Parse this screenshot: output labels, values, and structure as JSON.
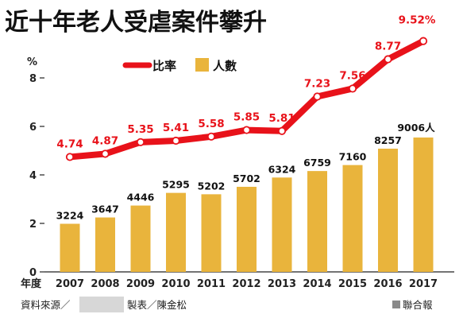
{
  "chart_data": {
    "type": "bar+line",
    "title": "近十年老人受虐案件攀升",
    "y_unit_label": "%",
    "x_axis_prefix": "年度",
    "ylim": [
      0,
      8
    ],
    "yticks": [
      "0",
      "2",
      "4",
      "6",
      "8"
    ],
    "categories": [
      "2007",
      "2008",
      "2009",
      "2010",
      "2011",
      "2012",
      "2013",
      "2014",
      "2015",
      "2016",
      "2017"
    ],
    "series": [
      {
        "name": "人數",
        "type": "bar",
        "values": [
          3224,
          3647,
          4446,
          5295,
          5202,
          5702,
          6324,
          6759,
          7160,
          8257,
          9006
        ],
        "labels": [
          "3224",
          "3647",
          "4446",
          "5295",
          "5202",
          "5702",
          "6324",
          "6759",
          "7160",
          "8257",
          "9006人"
        ],
        "color": "#e9b43c"
      },
      {
        "name": "比率",
        "type": "line",
        "values": [
          4.74,
          4.87,
          5.35,
          5.41,
          5.58,
          5.85,
          5.81,
          7.23,
          7.56,
          8.77,
          9.52
        ],
        "labels": [
          "4.74",
          "4.87",
          "5.35",
          "5.41",
          "5.58",
          "5.85",
          "5.81",
          "7.23",
          "7.56",
          "8.77",
          "9.52%"
        ],
        "color": "#e8121a"
      }
    ],
    "legend": {
      "position": "top-left",
      "items": [
        "比率",
        "人數"
      ]
    },
    "grid": false
  },
  "footer": {
    "source_prefix": "資料來源／",
    "made_by": "製表／陳金松",
    "publisher": "聯合報"
  }
}
